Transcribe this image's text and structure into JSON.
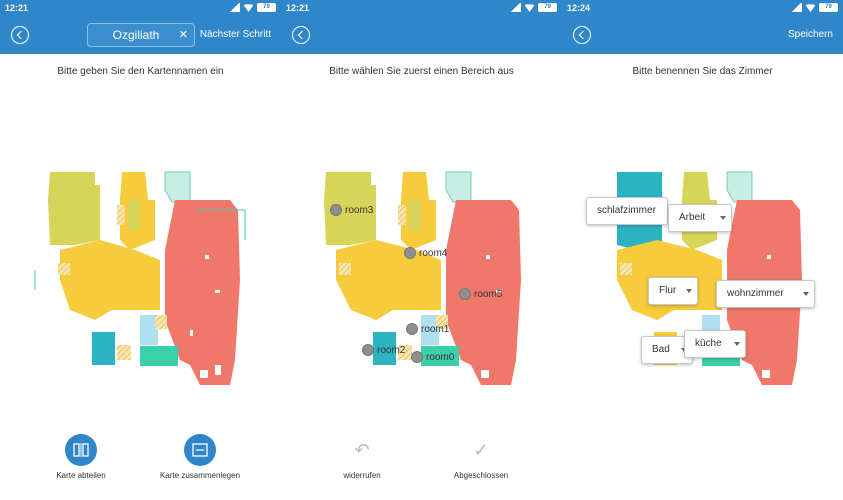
{
  "panels": [
    {
      "time": "12:21",
      "battery": "79",
      "name_value": "Ozgiliath",
      "nav_right": "Nächster Schritt",
      "instruction": "Bitte geben Sie den Kartennamen ein",
      "tools": [
        {
          "label": "Karte abteilen",
          "icon": "split-map-icon"
        },
        {
          "label": "Karte zusammenlegen",
          "icon": "merge-map-icon"
        }
      ]
    },
    {
      "time": "12:21",
      "battery": "79",
      "instruction": "Bitte wählen Sie zuerst einen Bereich aus",
      "rooms": [
        "room3",
        "room4",
        "room5",
        "room1",
        "room2",
        "room0"
      ],
      "tools": [
        {
          "label": "widerrufen",
          "icon": "undo-icon"
        },
        {
          "label": "Abgeschlossen",
          "icon": "check-icon"
        }
      ]
    },
    {
      "time": "12:24",
      "battery": "79",
      "nav_right": "Speichern",
      "instruction": "Bitte benennen Sie das Zimmer",
      "room_names": [
        "schlafzimmer",
        "Arbeit",
        "Flur",
        "wohnzimmer",
        "Bad",
        "küche"
      ]
    }
  ],
  "colors": {
    "header": "#2f86c9",
    "room_olive": "#d7d45a",
    "room_yellow": "#f7cc3c",
    "room_red": "#f0786a",
    "room_teal": "#2bb3c2",
    "room_mint": "#3bcfaa",
    "room_lightblue": "#aee0f0",
    "room_paleteal": "#c8ede2"
  }
}
